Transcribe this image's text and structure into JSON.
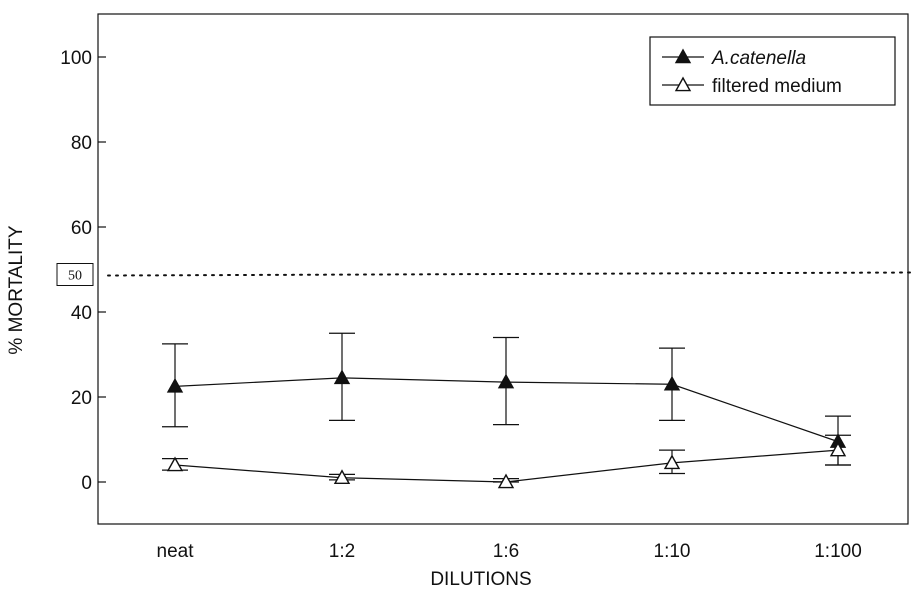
{
  "chart_data": {
    "type": "line",
    "title": "",
    "xlabel": "DILUTIONS",
    "ylabel": "% MORTALITY",
    "categories": [
      "neat",
      "1:2",
      "1:6",
      "1:10",
      "1:100"
    ],
    "y_ticks": [
      0,
      20,
      40,
      60,
      80,
      100
    ],
    "ylim": [
      -10,
      110
    ],
    "grid": false,
    "legend_position": "top-right",
    "reference_line": {
      "value": 50,
      "label": "50",
      "style": "dotted"
    },
    "series": [
      {
        "name": "A.catenella",
        "marker": "filled-triangle",
        "values": [
          22.5,
          24.5,
          23.5,
          23,
          9.5
        ],
        "error_high": [
          32.5,
          35,
          34,
          31.5,
          15.5
        ],
        "error_low": [
          13,
          14.5,
          13.5,
          14.5,
          4
        ]
      },
      {
        "name": "filtered medium",
        "marker": "open-triangle",
        "values": [
          4,
          1,
          0,
          4.5,
          7.5
        ],
        "error_high": [
          5.5,
          1.8,
          0.8,
          7.5,
          11
        ],
        "error_low": [
          2.8,
          0.5,
          0,
          2,
          4
        ]
      }
    ]
  }
}
